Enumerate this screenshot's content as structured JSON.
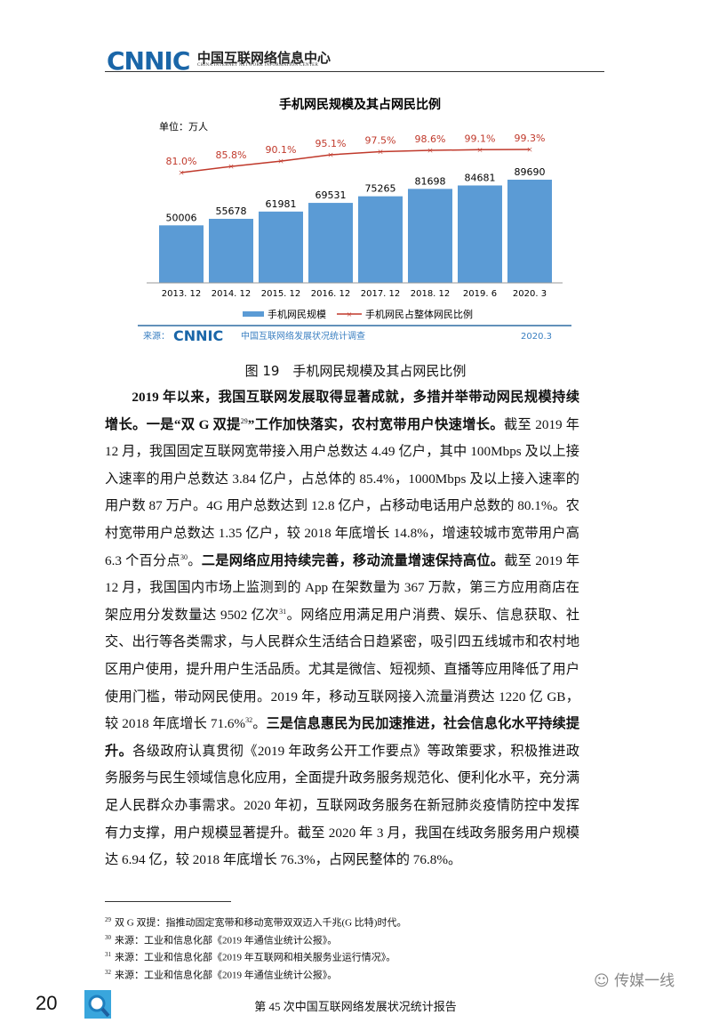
{
  "header": {
    "logo_text": "CNNIC",
    "org_cn": "中国互联网络信息中心",
    "org_en": "CHINA INTERNET NETWORK INFORMATION CENTER"
  },
  "chart_data": {
    "type": "bar",
    "title": "手机网民规模及其占网民比例",
    "unit_label": "单位：万人",
    "categories": [
      "2013. 12",
      "2014. 12",
      "2015. 12",
      "2016. 12",
      "2017. 12",
      "2018. 12",
      "2019. 6",
      "2020. 3"
    ],
    "series": [
      {
        "name": "手机网民规模",
        "type": "bar",
        "values": [
          50006,
          55678,
          61981,
          69531,
          75265,
          81698,
          84681,
          89690
        ],
        "color": "#5b9bd5"
      },
      {
        "name": "手机网民占整体网民比例",
        "type": "line",
        "values": [
          81.0,
          85.8,
          90.1,
          95.1,
          97.5,
          98.6,
          99.1,
          99.3
        ],
        "labels": [
          "81.0%",
          "85.8%",
          "90.1%",
          "95.1%",
          "97.5%",
          "98.6%",
          "99.1%",
          "99.3%"
        ],
        "color": "#c0392b"
      }
    ],
    "legend": "bottom",
    "source_label": "来源：",
    "source_logo": "CNNIC",
    "source_text": "中国互联网络发展状况统计调查",
    "date": "2020.3",
    "grid": false
  },
  "caption": "图 19　手机网民规模及其占网民比例",
  "body_runs": [
    {
      "t": "2019 年以来，我国互联网发展取得显著成就，多措并举带动网民规模持续增长。一是“双 G 双提",
      "b": true
    },
    {
      "t": "29",
      "sup": true
    },
    {
      "t": "”工作加快落实，农村宽带用户快速增长。",
      "b": true
    },
    {
      "t": "截至 2019 年 12 月，我国固定互联网宽带接入用户总数达 4.49 亿户，其中 100Mbps 及以上接入速率的用户总数达 3.84 亿户，占总体的 85.4%，1000Mbps 及以上接入速率的用户数 87 万户。4G 用户总数达到 12.8 亿户，占移动电话用户总数的 80.1%。农村宽带用户总数达 1.35 亿户，较 2018 年底增长 14.8%，增速较城市宽带用户高 6.3 个百分点"
    },
    {
      "t": "30",
      "sup": true
    },
    {
      "t": "。"
    },
    {
      "t": "二是网络应用持续完善，移动流量增速保持高位。",
      "b": true
    },
    {
      "t": "截至 2019 年 12 月，我国国内市场上监测到的 App 在架数量为 367 万款，第三方应用商店在架应用分发数量达 9502 亿次"
    },
    {
      "t": "31",
      "sup": true
    },
    {
      "t": "。网络应用满足用户消费、娱乐、信息获取、社交、出行等各类需求，与人民群众生活结合日趋紧密，吸引四五线城市和农村地区用户使用，提升用户生活品质。尤其是微信、短视频、直播等应用降低了用户使用门槛，带动网民使用。2019 年，移动互联网接入流量消费达 1220 亿 GB，较 2018 年底增长 71.6%"
    },
    {
      "t": "32",
      "sup": true
    },
    {
      "t": "。"
    },
    {
      "t": "三是信息惠民为民加速推进，社会信息化水平持续提升。",
      "b": true
    },
    {
      "t": "各级政府认真贯彻《2019 年政务公开工作要点》等政策要求，积极推进政务服务与民生领域信息化应用，全面提升政务服务规范化、便利化水平，充分满足人民群众办事需求。2020 年初，互联网政务服务在新冠肺炎疫情防控中发挥有力支撑，用户规模显著提升。截至 2020 年 3 月，我国在线政务服务用户规模达 6.94 亿，较 2018 年底增长 76.3%，占网民整体的 76.8%。"
    }
  ],
  "footnotes": [
    {
      "num": "29",
      "text": "双 G 双提：指推动固定宽带和移动宽带双双迈入千兆(G 比特)时代。"
    },
    {
      "num": "30",
      "text": "来源：工业和信息化部《2019 年通信业统计公报》。"
    },
    {
      "num": "31",
      "text": "来源：工业和信息化部《2019 年互联网和相关服务业运行情况》。"
    },
    {
      "num": "32",
      "text": "来源：工业和信息化部《2019 年通信业统计公报》。"
    }
  ],
  "footer": {
    "page_number": "20",
    "report_title": "第 45 次中国互联网络发展状况统计报告",
    "watermark": "传媒一线"
  }
}
